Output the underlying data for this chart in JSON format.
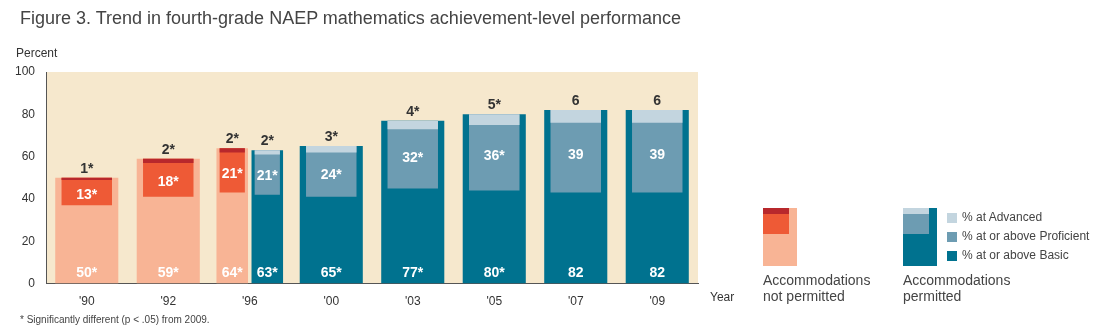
{
  "chart_data": {
    "type": "bar",
    "title": "Figure 3.  Trend in fourth-grade NAEP mathematics achievement-level performance",
    "ylabel": "Percent",
    "xlabel": "Year",
    "categories": [
      "'90",
      "'92",
      "'96",
      "'00",
      "'03",
      "'05",
      "'07",
      "'09"
    ],
    "series": [
      {
        "color": "#f8b495",
        "values": [
          50,
          59,
          64,
          null,
          null,
          null,
          null,
          null
        ],
        "value_labels": [
          "50*",
          "59*",
          "64*",
          null,
          null,
          null,
          null,
          null
        ]
      },
      {
        "color": "#ee5a36",
        "values": [
          13,
          18,
          21,
          null,
          null,
          null,
          null,
          null
        ],
        "base": [
          37,
          41,
          43,
          null,
          null,
          null,
          null,
          null
        ],
        "value_labels": [
          "13*",
          "18*",
          "21*",
          null,
          null,
          null,
          null,
          null
        ]
      },
      {
        "color": "#b8282c",
        "values": [
          1,
          2,
          2,
          null,
          null,
          null,
          null,
          null
        ],
        "base": [
          49,
          57,
          62,
          null,
          null,
          null,
          null,
          null
        ],
        "value_labels": [
          "1*",
          "2*",
          "2*",
          null,
          null,
          null,
          null,
          null
        ]
      },
      {
        "name": "% at or above Basic",
        "color": "#00728f",
        "values": [
          null,
          null,
          63,
          65,
          77,
          80,
          82,
          82
        ],
        "value_labels": [
          null,
          null,
          "63*",
          "65*",
          "77*",
          "80*",
          "82",
          "82"
        ]
      },
      {
        "name": "% at or above Proficient",
        "color": "#6d9cb2",
        "values": [
          null,
          null,
          21,
          24,
          32,
          36,
          39,
          39
        ],
        "base": [
          null,
          null,
          42,
          41,
          45,
          44,
          43,
          43
        ],
        "value_labels": [
          null,
          null,
          "21*",
          "24*",
          "32*",
          "36*",
          "39",
          "39"
        ]
      },
      {
        "name": "% at Advanced",
        "color": "#c3d5df",
        "values": [
          null,
          null,
          2,
          3,
          4,
          5,
          6,
          6
        ],
        "base": [
          null,
          null,
          61,
          62,
          73,
          75,
          76,
          76
        ],
        "value_labels": [
          null,
          null,
          "2*",
          "3*",
          "4*",
          "5*",
          "6",
          "6"
        ]
      }
    ],
    "ylim": [
      0,
      100
    ],
    "yticks": [
      0,
      20,
      40,
      60,
      80,
      100
    ],
    "legend": "bottom right",
    "annotations": [
      "Accommodations not permitted",
      "Accommodations permitted",
      "* Significantly different (p < .05) from 2009."
    ]
  }
}
